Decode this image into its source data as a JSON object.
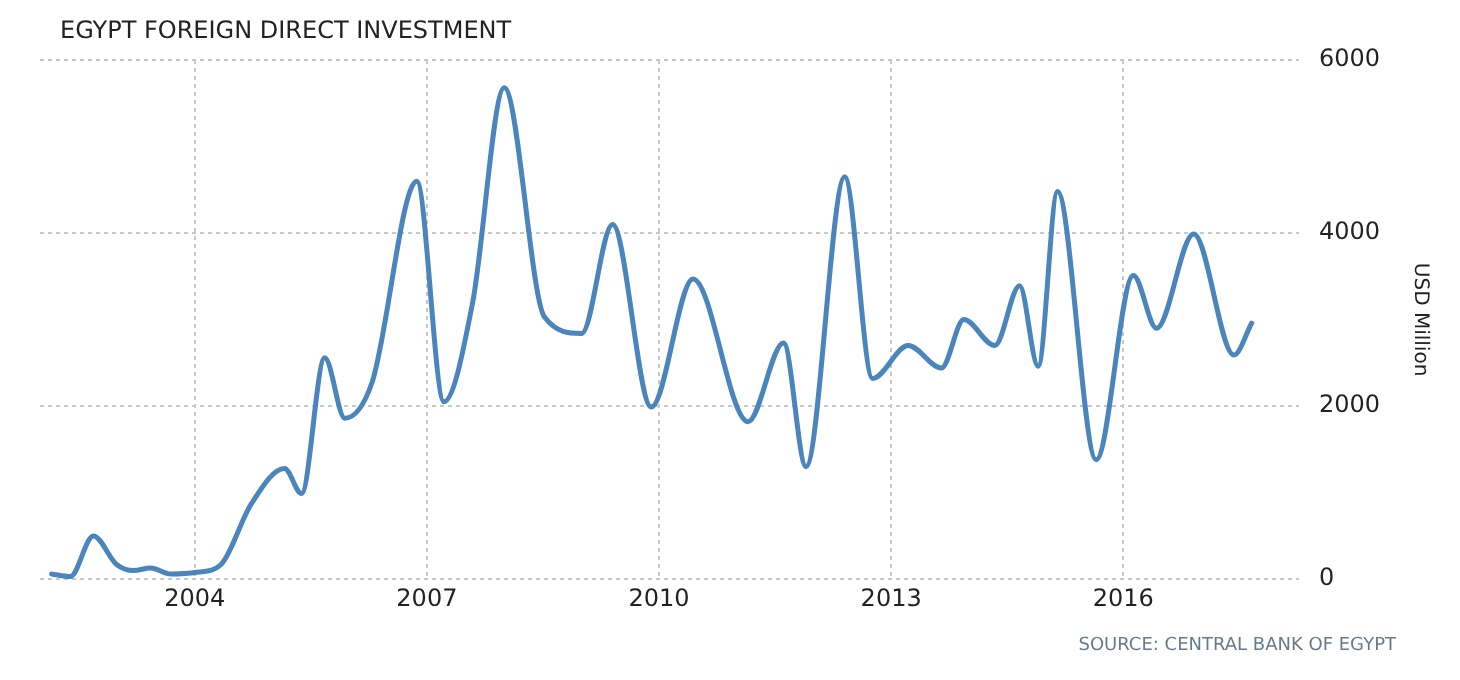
{
  "chart_data": {
    "type": "line",
    "title": "EGYPT FOREIGN DIRECT INVESTMENT",
    "ylabel": "USD Million",
    "annotations": [
      "SOURCE: CENTRAL BANK OF EGYPT"
    ],
    "xlim": [
      2002,
      2018.27
    ],
    "xticks": [
      2004,
      2007,
      2010,
      2013,
      2016
    ],
    "ylim": [
      0,
      6000
    ],
    "yticks": [
      0,
      2000,
      4000,
      6000
    ],
    "grid": true,
    "marker": "none",
    "line_style": "solid",
    "series": [
      {
        "color": "#4a85bb",
        "x": [
          2002.15,
          2002.39,
          2002.69,
          2002.99,
          2003.21,
          2003.43,
          2003.69,
          2004.03,
          2004.34,
          2004.73,
          2005.16,
          2005.38,
          2005.68,
          2005.94,
          2006.29,
          2006.87,
          2007.22,
          2007.59,
          2008.0,
          2008.52,
          2009.0,
          2009.4,
          2009.9,
          2010.44,
          2011.15,
          2011.61,
          2011.9,
          2012.4,
          2012.76,
          2013.22,
          2013.65,
          2013.94,
          2014.34,
          2014.66,
          2014.9,
          2015.15,
          2015.65,
          2016.13,
          2016.43,
          2016.91,
          2017.43,
          2017.66
        ],
        "values": [
          60,
          30,
          500,
          170,
          100,
          130,
          60,
          80,
          170,
          870,
          1280,
          990,
          2560,
          1860,
          2270,
          4600,
          2050,
          3190,
          5680,
          3030,
          2840,
          4100,
          1990,
          3470,
          1820,
          2730,
          1300,
          4650,
          2320,
          2700,
          2440,
          3000,
          2700,
          3390,
          2460,
          4480,
          1380,
          3510,
          2900,
          3990,
          2590,
          2960
        ]
      }
    ]
  }
}
